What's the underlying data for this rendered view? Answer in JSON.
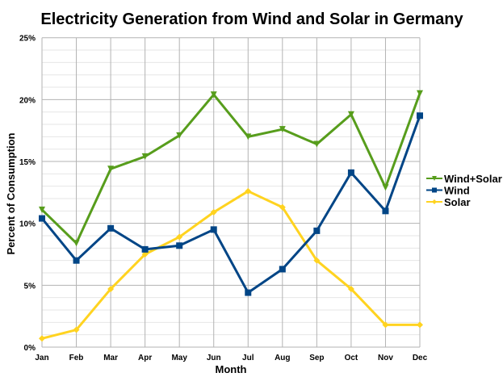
{
  "chart_data": {
    "type": "line",
    "title": "Electricity Generation from Wind and Solar in Germany",
    "xlabel": "Month",
    "ylabel": "Percent of Consumption",
    "categories": [
      "Jan",
      "Feb",
      "Mar",
      "Apr",
      "May",
      "Jun",
      "Jul",
      "Aug",
      "Sep",
      "Oct",
      "Nov",
      "Dec"
    ],
    "ylim": [
      0,
      25
    ],
    "yticks": [
      "0%",
      "5%",
      "10%",
      "15%",
      "20%",
      "25%"
    ],
    "grid": true,
    "legend_position": "right",
    "series": [
      {
        "name": "Wind+Solar",
        "color": "#579D1C",
        "marker": "triangle-down",
        "values": [
          11.1,
          8.4,
          14.4,
          15.4,
          17.1,
          20.4,
          17.0,
          17.6,
          16.4,
          18.8,
          12.9,
          20.5
        ]
      },
      {
        "name": "Wind",
        "color": "#004586",
        "marker": "square",
        "values": [
          10.4,
          7.0,
          9.6,
          7.9,
          8.2,
          9.5,
          4.4,
          6.3,
          9.4,
          14.1,
          11.0,
          18.7
        ]
      },
      {
        "name": "Solar",
        "color": "#FFD320",
        "marker": "diamond",
        "values": [
          0.7,
          1.4,
          4.7,
          7.5,
          8.9,
          10.9,
          12.6,
          11.3,
          7.0,
          4.7,
          1.8,
          1.8
        ]
      }
    ]
  }
}
